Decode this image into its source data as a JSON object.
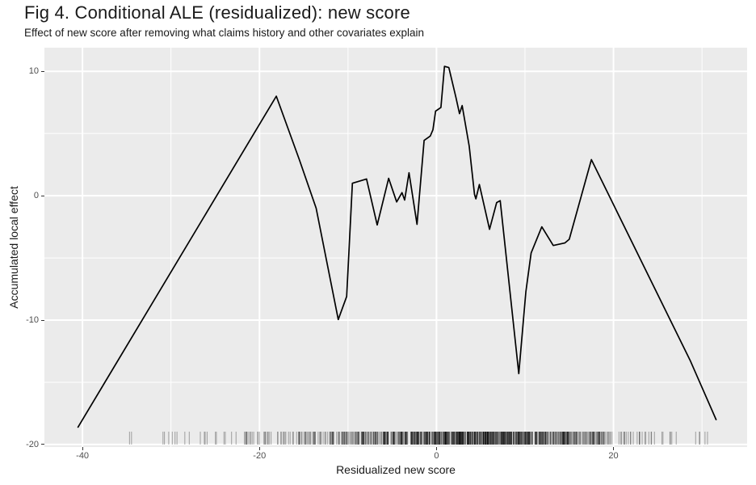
{
  "header": {
    "title": "Fig 4. Conditional ALE (residualized): new score",
    "subtitle": "Effect of new score after removing what claims history and other covariates explain"
  },
  "chart_data": {
    "type": "line",
    "title": "Fig 4. Conditional ALE (residualized): new score",
    "subtitle": "Effect of new score after removing what claims history and other covariates explain",
    "xlabel": "Residualized new score",
    "ylabel": "Accumulated local effect",
    "x_domain": [
      -44.3,
      35.1
    ],
    "y_domain": [
      -20.2,
      11.9
    ],
    "x_ticks": [
      {
        "value": -40,
        "label": "-40"
      },
      {
        "value": -20,
        "label": "-20"
      },
      {
        "value": 0,
        "label": "0"
      },
      {
        "value": 20,
        "label": "20"
      }
    ],
    "x_minor_ticks": [
      -30,
      -10,
      10,
      30
    ],
    "y_ticks": [
      {
        "value": 10,
        "label": "10"
      },
      {
        "value": 0,
        "label": "0"
      },
      {
        "value": -10,
        "label": "-10"
      },
      {
        "value": -20,
        "label": "-20"
      }
    ],
    "y_minor_ticks": [
      5,
      -5,
      -15
    ],
    "grid": true,
    "legend": false,
    "colors": {
      "panel_background": "#ebebeb",
      "grid": "#ffffff",
      "line": "#000000",
      "axis_text": "#4d4d4d",
      "tick_mark": "#333333",
      "title_text": "#1a1a1a"
    },
    "series": [
      {
        "name": "conditional-ale-residualized",
        "points": [
          [
            -40.5,
            -18.6
          ],
          [
            -18.1,
            8.0
          ],
          [
            -15.5,
            2.9
          ],
          [
            -13.6,
            -1.0
          ],
          [
            -11.1,
            -9.95
          ],
          [
            -10.15,
            -8.1
          ],
          [
            -9.5,
            1.0
          ],
          [
            -7.9,
            1.35
          ],
          [
            -6.7,
            -2.35
          ],
          [
            -5.4,
            1.4
          ],
          [
            -4.5,
            -0.5
          ],
          [
            -3.9,
            0.25
          ],
          [
            -3.6,
            -0.35
          ],
          [
            -3.1,
            1.85
          ],
          [
            -2.2,
            -2.3
          ],
          [
            -1.4,
            4.45
          ],
          [
            -0.7,
            4.8
          ],
          [
            -0.4,
            5.3
          ],
          [
            -0.1,
            6.8
          ],
          [
            0.5,
            7.1
          ],
          [
            0.9,
            10.4
          ],
          [
            1.4,
            10.3
          ],
          [
            2.2,
            7.9
          ],
          [
            2.6,
            6.6
          ],
          [
            2.9,
            7.25
          ],
          [
            3.7,
            4.0
          ],
          [
            4.3,
            0.1
          ],
          [
            4.45,
            -0.25
          ],
          [
            4.85,
            0.9
          ],
          [
            6.0,
            -2.7
          ],
          [
            6.8,
            -0.55
          ],
          [
            7.2,
            -0.4
          ],
          [
            9.3,
            -14.3
          ],
          [
            10.1,
            -7.7
          ],
          [
            10.7,
            -4.6
          ],
          [
            11.9,
            -2.5
          ],
          [
            13.2,
            -4.0
          ],
          [
            14.5,
            -3.8
          ],
          [
            15.0,
            -3.5
          ],
          [
            17.5,
            2.9
          ],
          [
            28.7,
            -13.3
          ],
          [
            31.6,
            -18.0
          ]
        ]
      }
    ],
    "rug": {
      "opacity": 0.3,
      "bands": [
        {
          "from": -36.5,
          "to": -33,
          "count": 2
        },
        {
          "from": -33,
          "to": -30,
          "count": 3
        },
        {
          "from": -30,
          "to": -27,
          "count": 5
        },
        {
          "from": -27,
          "to": -24,
          "count": 7
        },
        {
          "from": -24,
          "to": -21,
          "count": 10
        },
        {
          "from": -21,
          "to": -18,
          "count": 14
        },
        {
          "from": -18,
          "to": -15,
          "count": 20
        },
        {
          "from": -15,
          "to": -12,
          "count": 28
        },
        {
          "from": -12,
          "to": -9,
          "count": 40
        },
        {
          "from": -9,
          "to": -6,
          "count": 52
        },
        {
          "from": -6,
          "to": -3,
          "count": 70
        },
        {
          "from": -3,
          "to": 0,
          "count": 90
        },
        {
          "from": 0,
          "to": 3,
          "count": 110
        },
        {
          "from": 3,
          "to": 6,
          "count": 110
        },
        {
          "from": 6,
          "to": 9,
          "count": 100
        },
        {
          "from": 9,
          "to": 12,
          "count": 90
        },
        {
          "from": 12,
          "to": 15,
          "count": 75
        },
        {
          "from": 15,
          "to": 18,
          "count": 50
        },
        {
          "from": 18,
          "to": 21,
          "count": 30
        },
        {
          "from": 21,
          "to": 24,
          "count": 16
        },
        {
          "from": 24,
          "to": 27,
          "count": 8
        },
        {
          "from": 27,
          "to": 30,
          "count": 4
        },
        {
          "from": 30,
          "to": 32,
          "count": 2
        }
      ]
    }
  }
}
